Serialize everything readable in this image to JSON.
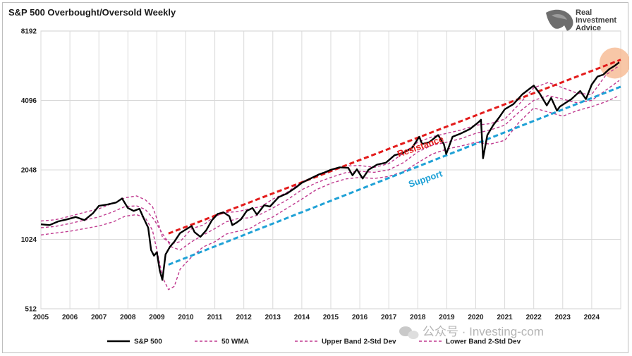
{
  "chart_data": {
    "type": "line",
    "title": "S&P 500 Overbought/Oversold Weekly",
    "yscale": "log2",
    "ylim": [
      512,
      8192
    ],
    "yticks": [
      "8192",
      "4096",
      "2048",
      "1024",
      "512"
    ],
    "xlim": [
      2005,
      2025
    ],
    "xticks": [
      "2005",
      "2006",
      "2007",
      "2008",
      "2009",
      "2010",
      "2011",
      "2012",
      "2013",
      "2014",
      "2015",
      "2016",
      "2017",
      "2018",
      "2019",
      "2020",
      "2021",
      "2022",
      "2023",
      "2024"
    ],
    "grid": true,
    "legend_placement": "bottom",
    "series": [
      {
        "name": "S&P 500",
        "color": "#000000",
        "style": "solid",
        "x": [
          2005.0,
          2005.3,
          2005.6,
          2005.9,
          2006.2,
          2006.5,
          2006.8,
          2007.0,
          2007.3,
          2007.6,
          2007.8,
          2008.0,
          2008.2,
          2008.4,
          2008.55,
          2008.7,
          2008.8,
          2008.9,
          2009.0,
          2009.1,
          2009.19,
          2009.3,
          2009.45,
          2009.6,
          2009.8,
          2010.0,
          2010.2,
          2010.3,
          2010.5,
          2010.7,
          2010.9,
          2011.1,
          2011.3,
          2011.5,
          2011.6,
          2011.75,
          2011.9,
          2012.1,
          2012.3,
          2012.45,
          2012.7,
          2012.9,
          2013.2,
          2013.5,
          2013.8,
          2014.0,
          2014.3,
          2014.6,
          2014.8,
          2015.0,
          2015.3,
          2015.6,
          2015.75,
          2015.9,
          2016.1,
          2016.3,
          2016.6,
          2016.9,
          2017.2,
          2017.5,
          2017.8,
          2018.05,
          2018.15,
          2018.4,
          2018.7,
          2018.9,
          2018.98,
          2019.2,
          2019.5,
          2019.8,
          2020.1,
          2020.18,
          2020.25,
          2020.4,
          2020.6,
          2020.8,
          2021.0,
          2021.3,
          2021.6,
          2021.9,
          2022.0,
          2022.2,
          2022.45,
          2022.6,
          2022.8,
          2022.9,
          2023.1,
          2023.3,
          2023.6,
          2023.8,
          2024.0,
          2024.2,
          2024.4,
          2024.6,
          2024.8,
          2024.95
        ],
        "y": [
          1190,
          1180,
          1225,
          1250,
          1280,
          1240,
          1330,
          1430,
          1450,
          1480,
          1540,
          1400,
          1360,
          1390,
          1260,
          1150,
          920,
          870,
          900,
          750,
          683,
          880,
          950,
          1000,
          1090,
          1130,
          1170,
          1100,
          1050,
          1120,
          1240,
          1320,
          1340,
          1290,
          1180,
          1210,
          1250,
          1360,
          1400,
          1310,
          1440,
          1420,
          1560,
          1620,
          1720,
          1800,
          1880,
          1960,
          2000,
          2050,
          2100,
          2090,
          1940,
          2060,
          1880,
          2050,
          2160,
          2200,
          2370,
          2430,
          2550,
          2850,
          2650,
          2700,
          2900,
          2650,
          2400,
          2850,
          2950,
          3080,
          3300,
          3380,
          2300,
          2900,
          3200,
          3450,
          3750,
          3950,
          4350,
          4650,
          4750,
          4400,
          3900,
          4200,
          3700,
          3850,
          4000,
          4150,
          4500,
          4150,
          4800,
          5200,
          5300,
          5600,
          5800,
          6000
        ]
      },
      {
        "name": "50 WMA",
        "color": "#c0398f",
        "style": "dashed",
        "x": [
          2005.0,
          2005.5,
          2006.0,
          2006.5,
          2007.0,
          2007.5,
          2007.9,
          2008.3,
          2008.6,
          2008.9,
          2009.2,
          2009.5,
          2009.8,
          2010.2,
          2010.6,
          2011.0,
          2011.4,
          2011.8,
          2012.2,
          2012.6,
          2013.0,
          2013.5,
          2014.0,
          2014.5,
          2015.0,
          2015.5,
          2016.0,
          2016.5,
          2017.0,
          2017.5,
          2018.0,
          2018.5,
          2019.0,
          2019.5,
          2020.0,
          2020.5,
          2021.0,
          2021.5,
          2022.0,
          2022.5,
          2023.0,
          2023.5,
          2024.0,
          2024.5,
          2024.95
        ],
        "y": [
          1150,
          1165,
          1200,
          1240,
          1280,
          1350,
          1420,
          1430,
          1380,
          1250,
          1080,
          950,
          920,
          1000,
          1070,
          1140,
          1220,
          1260,
          1270,
          1320,
          1400,
          1520,
          1680,
          1800,
          1900,
          1990,
          2020,
          2000,
          2050,
          2200,
          2450,
          2620,
          2700,
          2800,
          2950,
          3050,
          3200,
          3650,
          4100,
          4300,
          4150,
          4000,
          4100,
          4550,
          5000
        ]
      },
      {
        "name": "Upper Band 2-Std Dev",
        "color": "#c0398f",
        "style": "dashed",
        "x": [
          2005.0,
          2005.5,
          2006.0,
          2006.5,
          2007.0,
          2007.5,
          2007.9,
          2008.3,
          2008.6,
          2008.85,
          2009.0,
          2009.2,
          2009.5,
          2009.8,
          2010.2,
          2010.6,
          2011.0,
          2011.4,
          2011.8,
          2012.2,
          2012.6,
          2013.0,
          2013.5,
          2014.0,
          2014.5,
          2015.0,
          2015.5,
          2016.0,
          2016.5,
          2017.0,
          2017.5,
          2018.0,
          2018.5,
          2019.0,
          2019.5,
          2020.0,
          2020.5,
          2021.0,
          2021.5,
          2022.0,
          2022.5,
          2023.0,
          2023.5,
          2024.0,
          2024.5,
          2024.95
        ],
        "y": [
          1230,
          1245,
          1290,
          1340,
          1390,
          1470,
          1550,
          1580,
          1520,
          1420,
          1260,
          1040,
          980,
          1000,
          1140,
          1180,
          1290,
          1340,
          1350,
          1390,
          1420,
          1530,
          1640,
          1820,
          1920,
          2030,
          2130,
          2140,
          2100,
          2180,
          2420,
          2700,
          2850,
          2950,
          3050,
          3200,
          3250,
          3400,
          3950,
          4650,
          4900,
          4650,
          4400,
          4350,
          5300,
          5800
        ]
      },
      {
        "name": "Lower Band 2-Std Dev",
        "color": "#c0398f",
        "style": "dashed",
        "x": [
          2005.0,
          2005.5,
          2006.0,
          2006.5,
          2007.0,
          2007.5,
          2007.9,
          2008.3,
          2008.6,
          2008.85,
          2009.0,
          2009.2,
          2009.4,
          2009.6,
          2009.8,
          2010.2,
          2010.6,
          2011.0,
          2011.4,
          2011.8,
          2012.2,
          2012.6,
          2013.0,
          2013.5,
          2014.0,
          2014.5,
          2015.0,
          2015.5,
          2016.0,
          2016.5,
          2017.0,
          2017.5,
          2018.0,
          2018.5,
          2019.0,
          2019.5,
          2020.0,
          2020.5,
          2021.0,
          2021.5,
          2022.0,
          2022.5,
          2023.0,
          2023.5,
          2024.0,
          2024.5,
          2024.95
        ],
        "y": [
          1070,
          1090,
          1110,
          1140,
          1170,
          1220,
          1290,
          1310,
          1270,
          1120,
          920,
          700,
          620,
          640,
          760,
          860,
          950,
          1000,
          1080,
          1110,
          1140,
          1220,
          1280,
          1400,
          1530,
          1680,
          1790,
          1870,
          1900,
          1880,
          1920,
          2010,
          2200,
          2400,
          2520,
          2600,
          2700,
          2650,
          2750,
          3300,
          3800,
          3650,
          3500,
          3700,
          3850,
          4050,
          4300
        ]
      }
    ],
    "trendlines": [
      {
        "label": "Resistance",
        "color": "#e31b1b",
        "x": [
          2009.4,
          2025.0
        ],
        "y": [
          1085,
          6150
        ]
      },
      {
        "label": "Support",
        "color": "#1fa1d6",
        "x": [
          2009.4,
          2025.0
        ],
        "y": [
          795,
          4700
        ]
      }
    ],
    "highlight": {
      "color": "#f6b48a",
      "x": 2024.8,
      "y": 5950
    }
  },
  "legend": [
    {
      "label": "S&P 500",
      "style": "solid",
      "color": "#000000"
    },
    {
      "label": "50 WMA",
      "style": "dashed",
      "color": "#c0398f"
    },
    {
      "label": "Upper Band 2-Std Dev",
      "style": "dashed",
      "color": "#c0398f"
    },
    {
      "label": "Lower Band 2-Std Dev",
      "style": "dashed",
      "color": "#c0398f"
    }
  ],
  "brand": {
    "line1": "Real",
    "line2": "Investment",
    "line3": "Advice",
    "logo_icon": "eagle-head-icon"
  },
  "watermark": {
    "text": "公众号 · Investing-com",
    "icon": "wechat-icon"
  }
}
